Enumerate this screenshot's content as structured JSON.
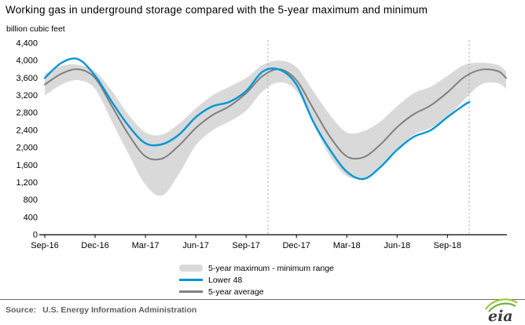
{
  "footer": {
    "source_label": "Source:",
    "source_text": "U.S. Energy Information Administration",
    "logo_text": "eia"
  },
  "chart_data": {
    "type": "line",
    "title": "Working gas in underground storage compared with the 5-year maximum and minimum",
    "ylabel": "billion cubic feet",
    "xlabel": "",
    "ylim": [
      0,
      4400
    ],
    "y_tick_step": 400,
    "x_range": [
      0,
      27.5
    ],
    "grid": false,
    "legend_position": "bottom",
    "x_ticks": [
      {
        "pos": 0,
        "label": "Sep-16"
      },
      {
        "pos": 3,
        "label": "Dec-16"
      },
      {
        "pos": 6,
        "label": "Mar-17"
      },
      {
        "pos": 9,
        "label": "Jun-17"
      },
      {
        "pos": 12,
        "label": "Sep-17"
      },
      {
        "pos": 15,
        "label": "Dec-17"
      },
      {
        "pos": 18,
        "label": "Mar-18"
      },
      {
        "pos": 21,
        "label": "Jun-18"
      },
      {
        "pos": 24,
        "label": "Sep-18"
      }
    ],
    "vlines": [
      13.3,
      25.3
    ],
    "band": {
      "label": "5-year maximum - minimum range",
      "color": "#d9d9d9",
      "x": [
        0,
        1,
        2,
        3,
        4,
        5,
        6,
        7,
        8,
        9,
        10,
        11,
        12,
        13,
        14,
        15,
        16,
        17,
        18,
        19,
        20,
        21,
        22,
        23,
        24,
        25,
        26,
        27,
        27.5
      ],
      "max": [
        3700,
        3880,
        3900,
        3750,
        3300,
        2750,
        2350,
        2300,
        2550,
        2900,
        3200,
        3400,
        3600,
        3900,
        4000,
        3850,
        3300,
        2750,
        2350,
        2380,
        2600,
        2950,
        3250,
        3400,
        3650,
        3900,
        3950,
        3900,
        3750
      ],
      "min": [
        3200,
        3450,
        3550,
        3350,
        2600,
        1850,
        1150,
        900,
        1400,
        2050,
        2400,
        2600,
        2850,
        3300,
        3500,
        3300,
        2550,
        1800,
        1350,
        1300,
        1550,
        1950,
        2300,
        2450,
        2700,
        3100,
        3450,
        3480,
        3350
      ]
    },
    "series": [
      {
        "label": "Lower 48",
        "color": "#0096d7",
        "width": 2.4,
        "x": [
          0,
          1,
          2,
          3,
          4,
          5,
          6,
          7,
          8,
          9,
          10,
          11,
          12,
          13,
          14,
          15,
          16,
          17,
          18,
          19,
          20,
          21,
          22,
          23,
          24,
          25,
          25.3
        ],
        "values": [
          3600,
          3950,
          4030,
          3650,
          3050,
          2500,
          2100,
          2080,
          2300,
          2700,
          2950,
          3050,
          3300,
          3750,
          3790,
          3450,
          2600,
          1950,
          1450,
          1280,
          1550,
          1950,
          2250,
          2400,
          2700,
          2980,
          3050
        ]
      },
      {
        "label": "5-year average",
        "color": "#808080",
        "width": 2,
        "x": [
          0,
          1,
          2,
          3,
          4,
          5,
          6,
          7,
          8,
          9,
          10,
          11,
          12,
          13,
          14,
          15,
          16,
          17,
          18,
          19,
          20,
          21,
          22,
          23,
          24,
          25,
          26,
          27,
          27.5
        ],
        "values": [
          3450,
          3700,
          3800,
          3600,
          2950,
          2300,
          1800,
          1750,
          2050,
          2450,
          2750,
          2950,
          3250,
          3650,
          3800,
          3550,
          2900,
          2250,
          1800,
          1780,
          2070,
          2470,
          2770,
          2970,
          3270,
          3620,
          3790,
          3760,
          3600
        ]
      }
    ],
    "legend": [
      {
        "label": "5-year maximum - minimum range"
      },
      {
        "label": "Lower 48"
      },
      {
        "label": "5-year average"
      }
    ]
  }
}
